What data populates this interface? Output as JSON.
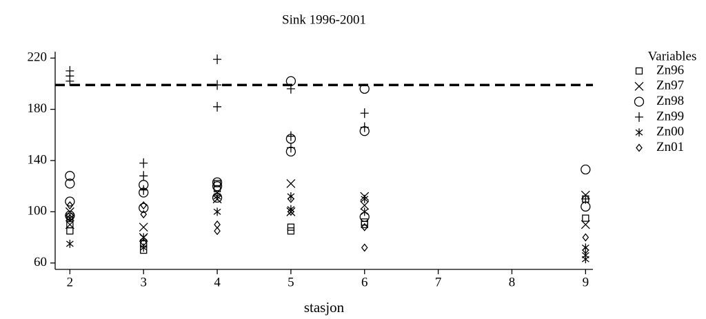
{
  "chart_data": {
    "type": "scatter",
    "title": "Sink 1996-2001",
    "x_label": "stasjon",
    "legend_title": "Variables",
    "xlim": [
      1.8,
      9.1
    ],
    "ylim": [
      55,
      225
    ],
    "xticks": [
      2,
      3,
      4,
      5,
      6,
      7,
      8,
      9
    ],
    "yticks": [
      60,
      100,
      140,
      180,
      220
    ],
    "hline": 199,
    "hline_style": "dashed",
    "legend": "right",
    "series": [
      {
        "name": "Zn96",
        "color": "#000000",
        "marker": "square",
        "x": [
          2,
          2,
          2,
          3,
          3,
          4,
          4,
          5,
          5,
          6,
          6,
          9,
          9
        ],
        "values": [
          85,
          90,
          96,
          70,
          75,
          122,
          118,
          85,
          88,
          90,
          92,
          95,
          110
        ]
      },
      {
        "name": "Zn97",
        "color": "#000000",
        "marker": "x",
        "x": [
          2,
          2,
          3,
          3,
          4,
          4,
          5,
          5,
          6,
          6,
          9,
          9
        ],
        "values": [
          90,
          100,
          80,
          88,
          115,
          110,
          122,
          100,
          112,
          105,
          113,
          90
        ]
      },
      {
        "name": "Zn98",
        "color": "#000000",
        "marker": "circle",
        "x": [
          2,
          2,
          2,
          2,
          3,
          3,
          3,
          4,
          4,
          4,
          5,
          5,
          5,
          6,
          6,
          6,
          9,
          9
        ],
        "values": [
          128,
          122,
          108,
          97,
          121,
          115,
          103,
          123,
          120,
          111,
          202,
          157,
          147,
          196,
          163,
          96,
          133,
          104
        ]
      },
      {
        "name": "Zn99",
        "color": "#000000",
        "marker": "plus",
        "x": [
          2,
          2,
          2,
          3,
          3,
          3,
          4,
          4,
          4,
          5,
          5,
          5,
          6,
          6,
          9
        ],
        "values": [
          210,
          206,
          202,
          138,
          128,
          117,
          219,
          199,
          182,
          196,
          159,
          150,
          177,
          166,
          110
        ]
      },
      {
        "name": "Zn00",
        "color": "#000000",
        "marker": "asterisk",
        "x": [
          2,
          2,
          3,
          3,
          4,
          4,
          5,
          5,
          6,
          6,
          9,
          9,
          9
        ],
        "values": [
          75,
          95,
          72,
          80,
          112,
          100,
          112,
          102,
          110,
          100,
          63,
          66,
          72
        ]
      },
      {
        "name": "Zn01",
        "color": "#000000",
        "marker": "diamond",
        "x": [
          2,
          2,
          3,
          3,
          3,
          4,
          4,
          5,
          5,
          6,
          6,
          9,
          9
        ],
        "values": [
          105,
          95,
          105,
          98,
          76,
          85,
          90,
          110,
          100,
          72,
          88,
          80,
          70
        ]
      }
    ]
  }
}
